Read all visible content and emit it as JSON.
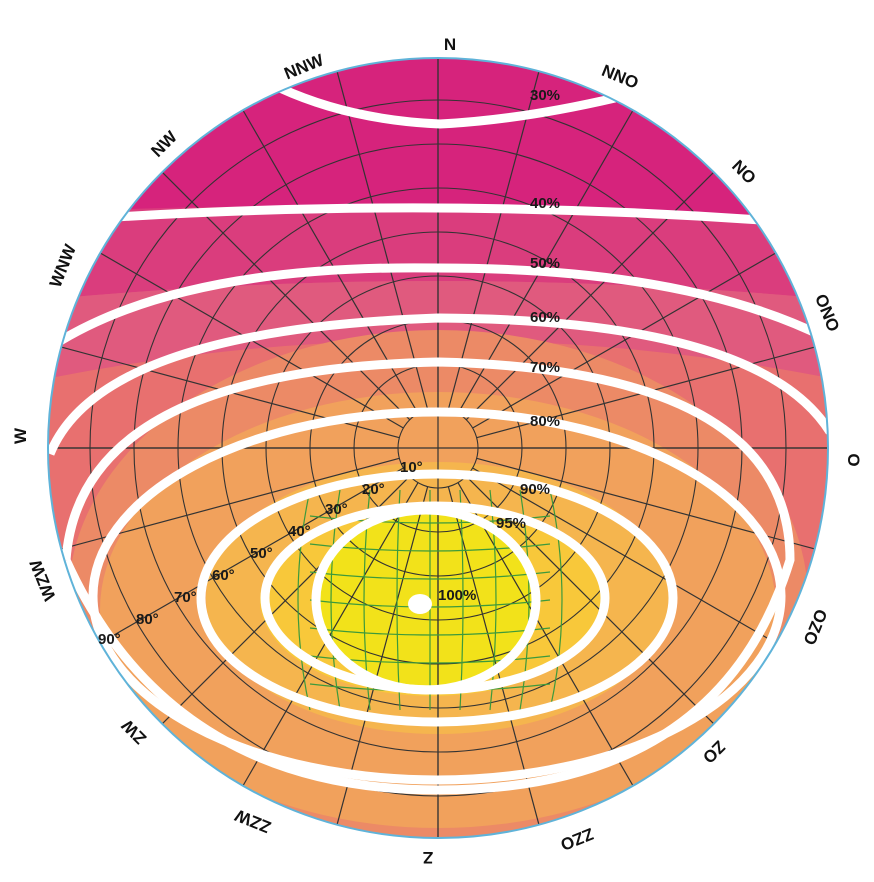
{
  "compass": {
    "N": "N",
    "NNO": "NNO",
    "NO": "NO",
    "ONO": "ONO",
    "O": "O",
    "OZO": "OZO",
    "ZO": "ZO",
    "ZZO": "ZZO",
    "Z": "Z",
    "ZZW": "ZZW",
    "ZW": "ZW",
    "WZW": "WZW",
    "W": "W",
    "WNW": "WNW",
    "NW": "NW",
    "NNW": "NNW"
  },
  "efficiency_levels": {
    "p30": "30%",
    "p40": "40%",
    "p50": "50%",
    "p60": "60%",
    "p70": "70%",
    "p80": "80%",
    "p90": "90%",
    "p95": "95%",
    "p100": "100%"
  },
  "altitude_labels": {
    "a10": "10°",
    "a20": "20°",
    "a30": "30°",
    "a40": "40°",
    "a50": "50°",
    "a60": "60°",
    "a70": "70°",
    "a80": "80°",
    "a90": "90°"
  },
  "colors": {
    "zone_magenta": "#d6237c",
    "zone_rose": "#e2557d",
    "zone_salmon": "#ec8070",
    "zone_orange": "#f3a059",
    "zone_light_orange": "#f7b84b",
    "zone_amber": "#f8c83a",
    "zone_yellow": "#f2e21a",
    "grid_dark": "#333333",
    "grid_green": "#3c9a3c",
    "contour": "#ffffff",
    "rim": "#5fb3d9"
  }
}
